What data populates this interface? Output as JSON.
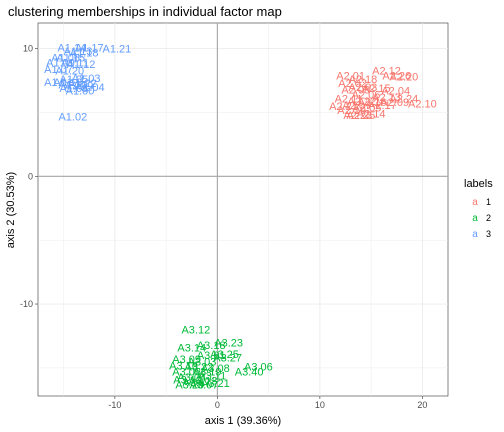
{
  "chart_data": {
    "type": "scatter",
    "title": "clustering memberships in individual factor map",
    "xlabel": "axis 1 (39.36%)",
    "ylabel": "axis 2 (30.53%)",
    "xlim": [
      -17.5,
      22.5
    ],
    "ylim": [
      -17.2,
      12.0
    ],
    "xticks": [
      -10,
      0,
      10,
      20
    ],
    "yticks": [
      -10,
      0,
      10
    ],
    "grid": true,
    "legend": {
      "title": "labels",
      "position": "right",
      "key_glyph": "a",
      "entries": [
        {
          "label": "1",
          "color": "#F8766D"
        },
        {
          "label": "2",
          "color": "#00BA38"
        },
        {
          "label": "3",
          "color": "#619CFF"
        }
      ]
    },
    "series": [
      {
        "name": "1",
        "color": "#F8766D",
        "points": [
          {
            "x": 16.5,
            "y": 8.3,
            "label": "A2.12"
          },
          {
            "x": 17.5,
            "y": 7.9,
            "label": "A2.26"
          },
          {
            "x": 13.0,
            "y": 7.9,
            "label": "A2.01"
          },
          {
            "x": 14.2,
            "y": 7.6,
            "label": "A2.18"
          },
          {
            "x": 18.2,
            "y": 7.8,
            "label": "A2.20"
          },
          {
            "x": 13.2,
            "y": 7.3,
            "label": "A2.02"
          },
          {
            "x": 14.2,
            "y": 7.0,
            "label": "A2.03"
          },
          {
            "x": 13.5,
            "y": 6.8,
            "label": "A2.08"
          },
          {
            "x": 15.5,
            "y": 6.9,
            "label": "A2.15"
          },
          {
            "x": 17.4,
            "y": 6.7,
            "label": "A2.04"
          },
          {
            "x": 14.5,
            "y": 6.4,
            "label": "A2.06"
          },
          {
            "x": 12.8,
            "y": 6.1,
            "label": "A2.11"
          },
          {
            "x": 14.1,
            "y": 5.9,
            "label": "A2.22"
          },
          {
            "x": 16.5,
            "y": 6.2,
            "label": "A2.13"
          },
          {
            "x": 18.2,
            "y": 6.1,
            "label": "A2.24"
          },
          {
            "x": 13.6,
            "y": 5.6,
            "label": "A2.07"
          },
          {
            "x": 15.1,
            "y": 5.8,
            "label": "A2.16"
          },
          {
            "x": 17.3,
            "y": 5.8,
            "label": "A2.09"
          },
          {
            "x": 12.3,
            "y": 5.5,
            "label": "A2.21"
          },
          {
            "x": 14.6,
            "y": 5.4,
            "label": "A2.05"
          },
          {
            "x": 20.0,
            "y": 5.7,
            "label": "A2.10"
          },
          {
            "x": 13.1,
            "y": 5.2,
            "label": "A2.19"
          },
          {
            "x": 16.1,
            "y": 5.6,
            "label": "A2.17"
          },
          {
            "x": 15.0,
            "y": 4.9,
            "label": "A2.14"
          },
          {
            "x": 13.7,
            "y": 4.8,
            "label": "A2.23"
          },
          {
            "x": 14.0,
            "y": 4.8,
            "label": "A2.25"
          }
        ]
      },
      {
        "name": "2",
        "color": "#00BA38",
        "points": [
          {
            "x": -2.1,
            "y": -12.0,
            "label": "A3.12"
          },
          {
            "x": 1.1,
            "y": -13.0,
            "label": "A3.23"
          },
          {
            "x": -0.6,
            "y": -13.2,
            "label": "A3.18"
          },
          {
            "x": -2.5,
            "y": -13.4,
            "label": "A3.14"
          },
          {
            "x": 0.7,
            "y": -13.9,
            "label": "A3.25"
          },
          {
            "x": -0.6,
            "y": -14.0,
            "label": "A3.01"
          },
          {
            "x": 1.0,
            "y": -14.2,
            "label": "A3.27"
          },
          {
            "x": -3.0,
            "y": -14.3,
            "label": "A3.09"
          },
          {
            "x": -1.5,
            "y": -14.5,
            "label": "A3.03"
          },
          {
            "x": 4.0,
            "y": -14.9,
            "label": "A3.06"
          },
          {
            "x": -3.3,
            "y": -14.8,
            "label": "A3.16"
          },
          {
            "x": -1.8,
            "y": -14.9,
            "label": "A3.22"
          },
          {
            "x": -0.2,
            "y": -15.0,
            "label": "A3.08"
          },
          {
            "x": -3.0,
            "y": -15.3,
            "label": "A3.05"
          },
          {
            "x": 3.1,
            "y": -15.3,
            "label": "A3.40"
          },
          {
            "x": -1.0,
            "y": -15.3,
            "label": "A3.19"
          },
          {
            "x": -2.5,
            "y": -15.7,
            "label": "A3.04"
          },
          {
            "x": -0.5,
            "y": -15.6,
            "label": "A3.11"
          },
          {
            "x": -2.9,
            "y": -15.9,
            "label": "A3.10"
          },
          {
            "x": -1.4,
            "y": -16.0,
            "label": "A3.13"
          },
          {
            "x": -2.0,
            "y": -16.1,
            "label": "A3.17"
          },
          {
            "x": -0.2,
            "y": -16.2,
            "label": "A3.21"
          },
          {
            "x": -2.7,
            "y": -16.3,
            "label": "A3.20"
          },
          {
            "x": -1.3,
            "y": -16.3,
            "label": "A3.07"
          }
        ]
      },
      {
        "name": "3",
        "color": "#619CFF",
        "points": [
          {
            "x": -14.2,
            "y": 10.1,
            "label": "A1.14"
          },
          {
            "x": -12.5,
            "y": 10.1,
            "label": "A1.17"
          },
          {
            "x": -9.8,
            "y": 10.0,
            "label": "A1.21"
          },
          {
            "x": -13.6,
            "y": 9.8,
            "label": "A1.13"
          },
          {
            "x": -13.0,
            "y": 9.7,
            "label": "A1.18"
          },
          {
            "x": -14.8,
            "y": 9.3,
            "label": "A1.06"
          },
          {
            "x": -14.3,
            "y": 9.3,
            "label": "A1.15"
          },
          {
            "x": -15.3,
            "y": 8.9,
            "label": "A1.09"
          },
          {
            "x": -13.9,
            "y": 8.9,
            "label": "A1.11"
          },
          {
            "x": -13.3,
            "y": 8.8,
            "label": "A1.12"
          },
          {
            "x": -15.5,
            "y": 8.4,
            "label": "A1.07"
          },
          {
            "x": -14.4,
            "y": 8.3,
            "label": "A1.20"
          },
          {
            "x": -14.0,
            "y": 7.6,
            "label": "A1.05"
          },
          {
            "x": -12.8,
            "y": 7.7,
            "label": "A1.03"
          },
          {
            "x": -15.5,
            "y": 7.4,
            "label": "A1.01"
          },
          {
            "x": -14.6,
            "y": 7.4,
            "label": "A1.16"
          },
          {
            "x": -13.2,
            "y": 7.3,
            "label": "A1.22"
          },
          {
            "x": -14.1,
            "y": 7.2,
            "label": "A1.10"
          },
          {
            "x": -13.5,
            "y": 7.1,
            "label": "A1.19"
          },
          {
            "x": -14.0,
            "y": 6.9,
            "label": "A1.08"
          },
          {
            "x": -12.4,
            "y": 7.0,
            "label": "A1.04"
          },
          {
            "x": -13.4,
            "y": 6.7,
            "label": "A1.00"
          },
          {
            "x": -14.1,
            "y": 4.7,
            "label": "A1.02"
          }
        ]
      }
    ]
  }
}
